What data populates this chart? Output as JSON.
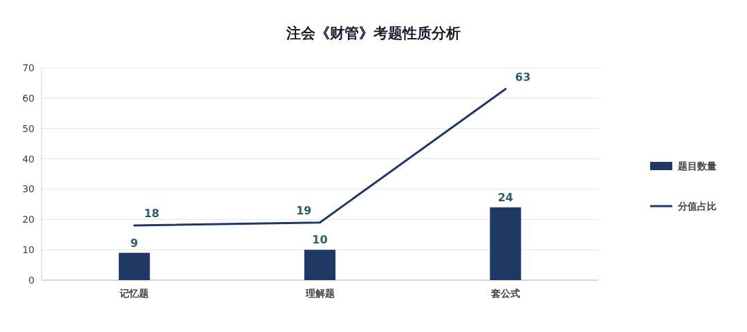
{
  "chart_data": {
    "type": "bar",
    "title": "注会《财管》考题性质分析",
    "categories": [
      "记忆题",
      "理解题",
      "套公式"
    ],
    "series": [
      {
        "name": "题目数量",
        "color": "#203864",
        "values": [
          9,
          10,
          24
        ]
      },
      {
        "name": "分值占比",
        "type": "line",
        "color": "#203864",
        "values": [
          18,
          19,
          63
        ]
      }
    ],
    "ylim": [
      0,
      70
    ],
    "yticks": [
      0,
      10,
      20,
      30,
      40,
      50,
      60,
      70
    ],
    "grid": "y",
    "legend": "right",
    "data_labels": true
  }
}
